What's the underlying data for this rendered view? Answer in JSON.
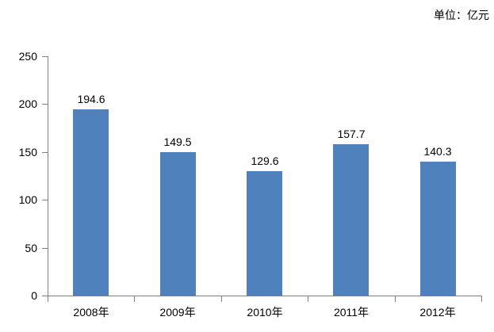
{
  "chart_data": {
    "type": "bar",
    "title": "",
    "unit_label": "单位：亿元",
    "categories": [
      "2008年",
      "2009年",
      "2010年",
      "2011年",
      "2012年"
    ],
    "values": [
      194.6,
      149.5,
      129.6,
      157.7,
      140.3
    ],
    "value_labels": [
      "194.6",
      "149.5",
      "129.6",
      "157.7",
      "140.3"
    ],
    "xlabel": "",
    "ylabel": "",
    "ylim": [
      0,
      250
    ],
    "y_ticks": [
      0,
      50,
      100,
      150,
      200,
      250
    ],
    "y_tick_labels": [
      "0",
      "50",
      "100",
      "150",
      "200",
      "250"
    ],
    "grid": "off",
    "legend": "none",
    "colors": {
      "bar": "#4f81bd",
      "axis": "#7f7f7f",
      "text": "#000000",
      "background": "#ffffff"
    }
  }
}
